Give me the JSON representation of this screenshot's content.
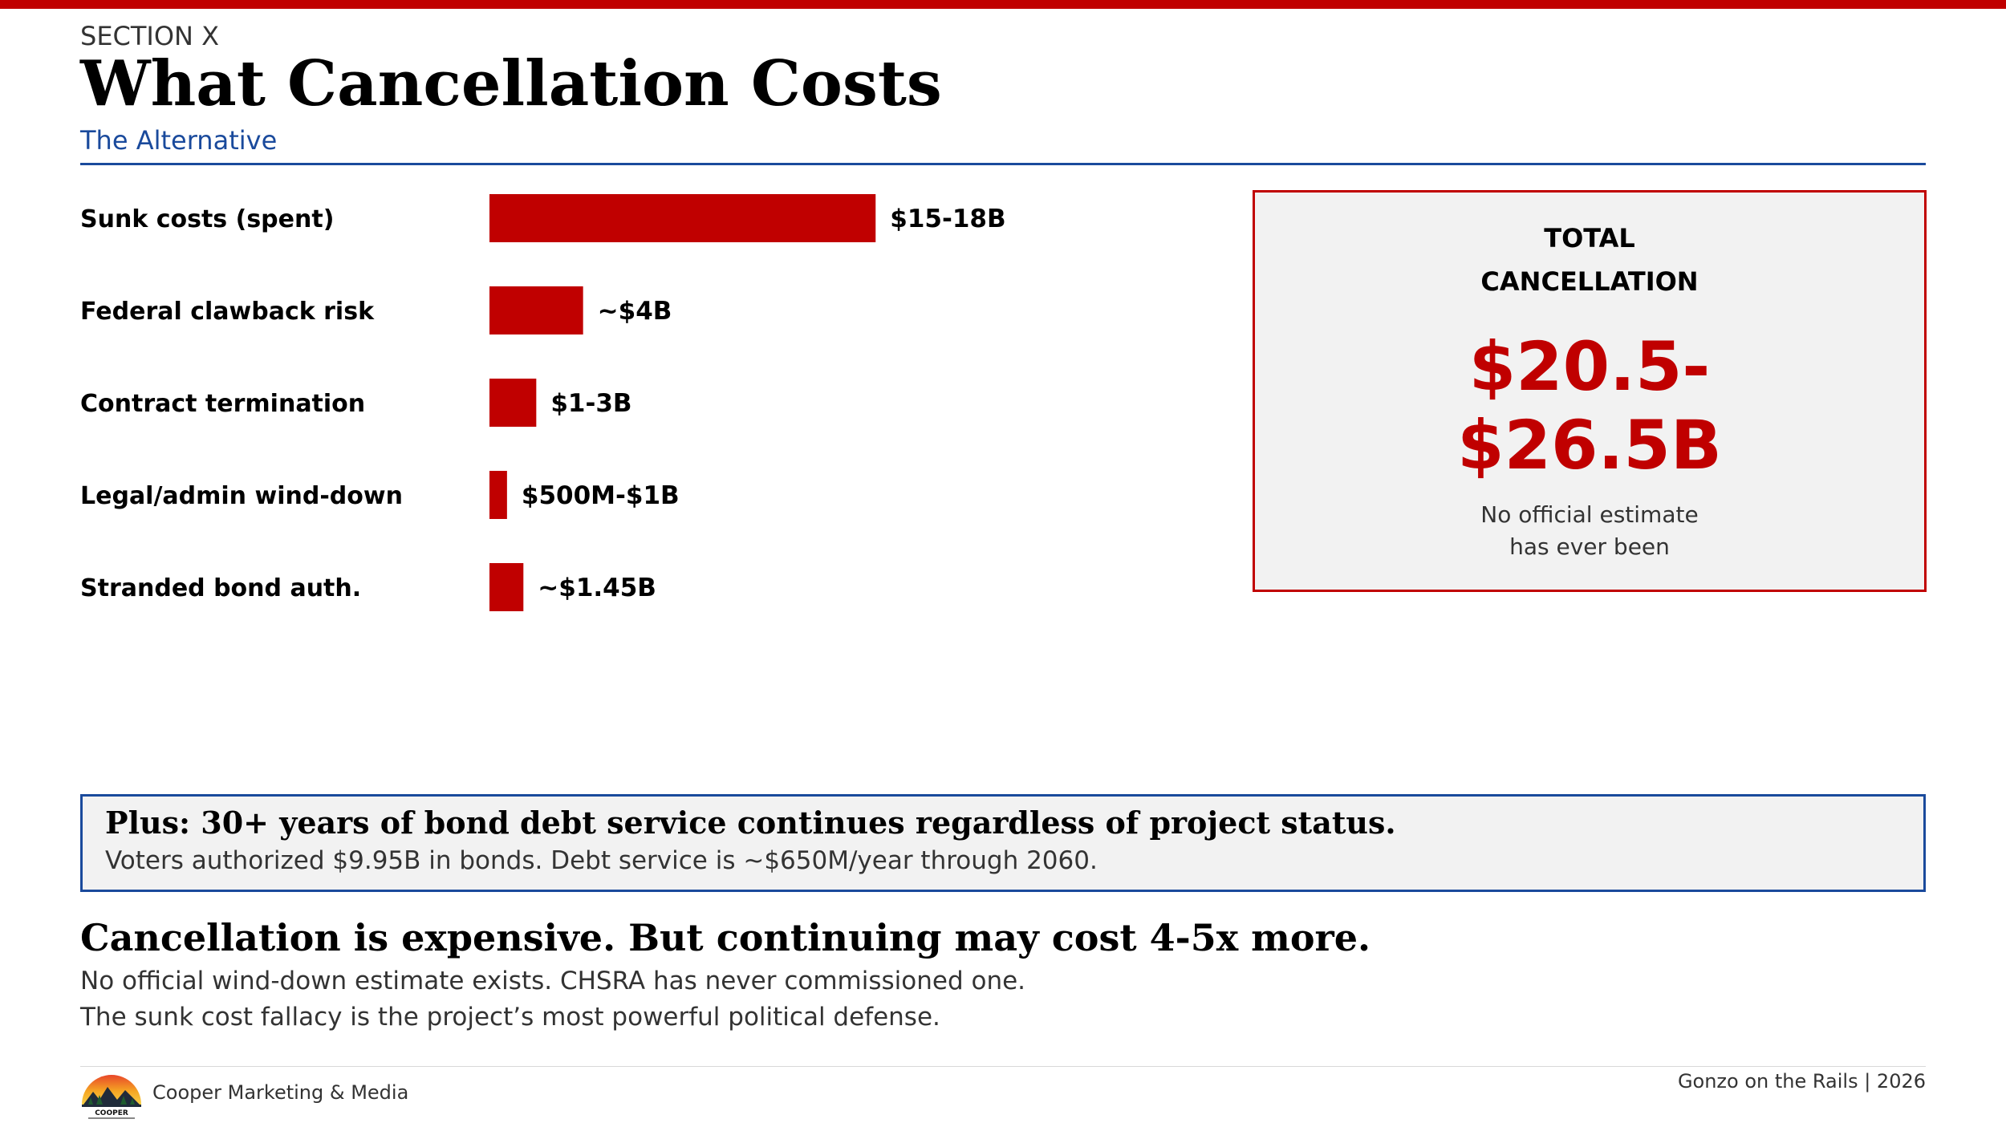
{
  "section_label": "SECTION X",
  "title": "What Cancellation Costs",
  "subtitle": "The Alternative",
  "colors": {
    "accent_red": "#c00000",
    "accent_blue": "#1a4a9c",
    "panel_gray": "#f2f2f2"
  },
  "chart_data": {
    "type": "bar",
    "orientation": "horizontal",
    "categories": [
      "Sunk costs (spent)",
      "Federal clawback risk",
      "Contract termination",
      "Legal/admin wind-down",
      "Stranded bond auth."
    ],
    "values": [
      16.5,
      4,
      2,
      0.75,
      1.45
    ],
    "unit": "billion USD",
    "value_labels": [
      "$15-18B",
      "~$4B",
      "$1-3B",
      "$500M-$1B",
      "~$1.45B"
    ],
    "xmax": 18,
    "bar_color": "#c00000"
  },
  "total_box": {
    "label_line1": "TOTAL",
    "label_line2": "CANCELLATION",
    "amount_line1": "$20.5-",
    "amount_line2": "$26.5B",
    "note_line1": "No official estimate",
    "note_line2": "has ever been"
  },
  "plus_box": {
    "heading": "Plus: 30+ years of bond debt service continues regardless of project status.",
    "text": "Voters authorized $9.95B in bonds. Debt service is ~$650M/year through 2060."
  },
  "conclusion": {
    "heading": "Cancellation is expensive. But continuing may cost 4-5x more.",
    "line1": "No official wind-down estimate exists. CHSRA has never commissioned one.",
    "line2": "The sunk cost fallacy is the project’s most powerful political defense."
  },
  "footer": {
    "company": "Cooper Marketing & Media",
    "logo_text": "COOPER",
    "right_text": "Gonzo on the Rails  |  2026"
  }
}
